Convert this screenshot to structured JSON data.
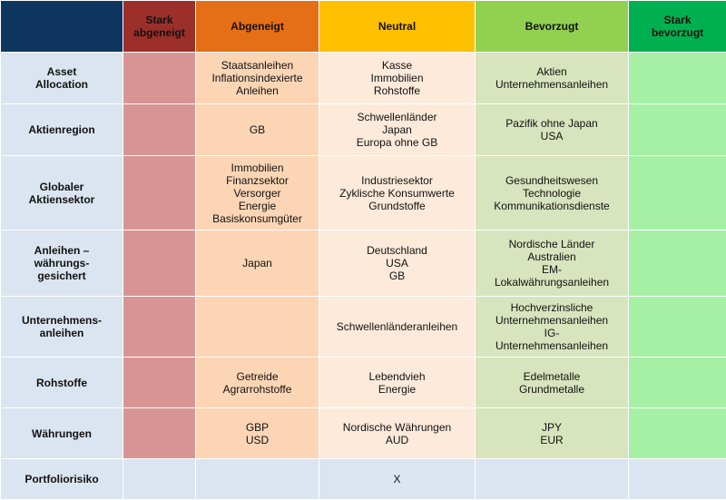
{
  "columns": [
    "",
    "Stark abgeneigt",
    "Abgeneigt",
    "Neutral",
    "Bevorzugt",
    "Stark bevorzugt"
  ],
  "header_lines": [
    [],
    [
      "Stark",
      "abgeneigt"
    ],
    [
      "Abgeneigt"
    ],
    [
      "Neutral"
    ],
    [
      "Bevorzugt"
    ],
    [
      "Stark",
      "bevorzugt"
    ]
  ],
  "rows": [
    {
      "label": [
        "Asset",
        "Allocation"
      ],
      "stark_abgeneigt": [],
      "abgeneigt": [
        "Staatsanleihen",
        "Inflationsindexierte",
        "Anleihen"
      ],
      "neutral": [
        "Kasse",
        "Immobilien",
        "Rohstoffe"
      ],
      "bevorzugt": [
        "Aktien",
        "Unternehmensanleihen"
      ],
      "stark_bevorzugt": []
    },
    {
      "label": [
        "Aktienregion"
      ],
      "stark_abgeneigt": [],
      "abgeneigt": [
        "GB"
      ],
      "neutral": [
        "Schwellenländer",
        "Japan",
        "Europa ohne GB"
      ],
      "bevorzugt": [
        "Pazifik ohne Japan",
        "USA"
      ],
      "stark_bevorzugt": []
    },
    {
      "label": [
        "Globaler",
        "Aktiensektor"
      ],
      "stark_abgeneigt": [],
      "abgeneigt": [
        "Immobilien",
        "Finanzsektor",
        "Versorger",
        "Energie",
        "Basiskonsumgüter"
      ],
      "neutral": [
        "Industriesektor",
        "Zyklische Konsumwerte",
        "Grundstoffe"
      ],
      "bevorzugt": [
        "Gesundheitswesen",
        "Technologie",
        "Kommunikationsdienste"
      ],
      "stark_bevorzugt": []
    },
    {
      "label": [
        "Anleihen –",
        "währungs-",
        "gesichert"
      ],
      "stark_abgeneigt": [],
      "abgeneigt": [
        "Japan"
      ],
      "neutral": [
        "Deutschland",
        "USA",
        "GB"
      ],
      "bevorzugt": [
        "Nordische Länder",
        "Australien",
        "EM-",
        "Lokalwährungsanleihen"
      ],
      "stark_bevorzugt": []
    },
    {
      "label": [
        "Unternehmens-",
        "anleihen"
      ],
      "stark_abgeneigt": [],
      "abgeneigt": [],
      "neutral": [
        "Schwellenländeranleihen"
      ],
      "bevorzugt": [
        "Hochverzinsliche",
        "Unternehmensanleihen",
        "IG-",
        "Unternehmensanleihen"
      ],
      "stark_bevorzugt": []
    },
    {
      "label": [
        "Rohstoffe"
      ],
      "stark_abgeneigt": [],
      "abgeneigt": [
        "Getreide",
        "Agrarrohstoffe"
      ],
      "neutral": [
        "Lebendvieh",
        "Energie"
      ],
      "bevorzugt": [
        "Edelmetalle",
        "Grundmetalle"
      ],
      "stark_bevorzugt": []
    },
    {
      "label": [
        "Währungen"
      ],
      "stark_abgeneigt": [],
      "abgeneigt": [
        "GBP",
        "USD"
      ],
      "neutral": [
        "Nordische Währungen",
        "AUD"
      ],
      "bevorzugt": [
        "JPY",
        "EUR"
      ],
      "stark_bevorzugt": []
    },
    {
      "label": [
        "Portfoliorisiko"
      ],
      "stark_abgeneigt": [],
      "abgeneigt": [],
      "neutral": [
        "X"
      ],
      "bevorzugt": [],
      "stark_bevorzugt": []
    }
  ],
  "colors": {
    "header_corner": "#0d3560",
    "stark_abgeneigt": "#9c2f2a",
    "abgeneigt": "#e56f16",
    "neutral": "#ffc000",
    "bevorzugt": "#92d050",
    "stark_bevorzugt": "#00b050",
    "row_label_bg": "#dbe5f1",
    "row_label_text": "#17375e"
  }
}
